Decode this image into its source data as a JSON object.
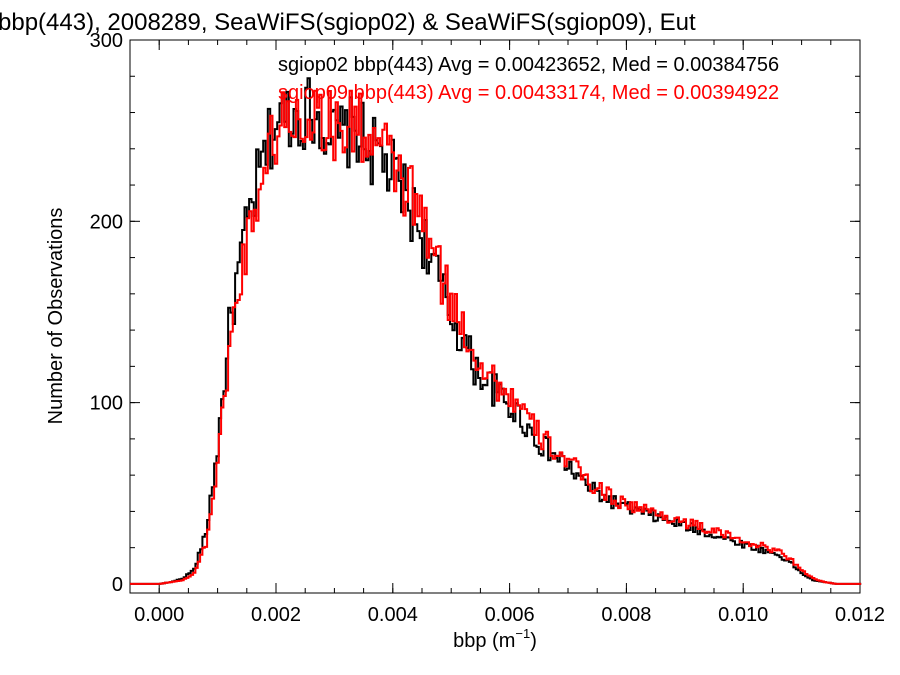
{
  "chart_data": {
    "type": "histogram",
    "title": "bbp(443), 2008289, SeaWiFS(sgiop02) & SeaWiFS(sgiop09), Eut",
    "xlabel": "bbp (m⁻¹)",
    "ylabel": "Number of Observations",
    "xlim": [
      -0.0005,
      0.012
    ],
    "ylim": [
      -5,
      300
    ],
    "xticks": [
      "0.000",
      "0.002",
      "0.004",
      "0.006",
      "0.008",
      "0.010",
      "0.012"
    ],
    "xtick_values": [
      0,
      0.002,
      0.004,
      0.006,
      0.008,
      0.01,
      0.012
    ],
    "yticks": [
      "0",
      "100",
      "200",
      "300"
    ],
    "ytick_values": [
      0,
      100,
      200,
      300
    ],
    "grid": false,
    "legend_placement": "top-right",
    "annotations": [
      {
        "text": "sgiop02 bbp(443) Avg = 0.00423652, Med = 0.00384756",
        "color": "#000000"
      },
      {
        "text": "sgiop09 bbp(443) Avg = 0.00433174, Med = 0.00394922",
        "color": "#ff0000"
      }
    ],
    "bin_width": 4e-05,
    "series": [
      {
        "name": "sgiop02",
        "color": "#000000",
        "x": [
          0.0,
          0.0002,
          0.0004,
          0.0006,
          0.0008,
          0.001,
          0.0012,
          0.0014,
          0.0016,
          0.0018,
          0.002,
          0.0022,
          0.0024,
          0.0026,
          0.0028,
          0.003,
          0.0032,
          0.0034,
          0.0036,
          0.0038,
          0.004,
          0.0042,
          0.0044,
          0.0046,
          0.0048,
          0.005,
          0.0052,
          0.0054,
          0.0056,
          0.0058,
          0.006,
          0.0062,
          0.0064,
          0.0066,
          0.0068,
          0.007,
          0.0072,
          0.0074,
          0.0076,
          0.0078,
          0.008,
          0.0082,
          0.0084,
          0.0086,
          0.0088,
          0.009,
          0.0092,
          0.0094,
          0.0096,
          0.0098,
          0.01,
          0.0102,
          0.0104,
          0.0106,
          0.0108,
          0.011,
          0.0112,
          0.0114,
          0.0116
        ],
        "values": [
          0,
          1,
          3,
          8,
          28,
          75,
          140,
          180,
          210,
          235,
          255,
          260,
          258,
          262,
          255,
          245,
          248,
          250,
          240,
          235,
          225,
          215,
          200,
          185,
          165,
          148,
          135,
          120,
          112,
          105,
          98,
          92,
          82,
          75,
          70,
          65,
          58,
          52,
          48,
          45,
          42,
          40,
          38,
          36,
          34,
          32,
          30,
          28,
          26,
          24,
          22,
          20,
          18,
          16,
          12,
          6,
          2,
          1,
          0
        ]
      },
      {
        "name": "sgiop09",
        "color": "#ff0000",
        "x": [
          0.0,
          0.0002,
          0.0004,
          0.0006,
          0.0008,
          0.001,
          0.0012,
          0.0014,
          0.0016,
          0.0018,
          0.002,
          0.0022,
          0.0024,
          0.0026,
          0.0028,
          0.003,
          0.0032,
          0.0034,
          0.0036,
          0.0038,
          0.004,
          0.0042,
          0.0044,
          0.0046,
          0.0048,
          0.005,
          0.0052,
          0.0054,
          0.0056,
          0.0058,
          0.006,
          0.0062,
          0.0064,
          0.0066,
          0.0068,
          0.007,
          0.0072,
          0.0074,
          0.0076,
          0.0078,
          0.008,
          0.0082,
          0.0084,
          0.0086,
          0.0088,
          0.009,
          0.0092,
          0.0094,
          0.0096,
          0.0098,
          0.01,
          0.0102,
          0.0104,
          0.0106,
          0.0108,
          0.011,
          0.0112,
          0.0114,
          0.0116
        ],
        "values": [
          0,
          1,
          2,
          6,
          22,
          65,
          130,
          170,
          205,
          230,
          250,
          258,
          256,
          260,
          258,
          250,
          252,
          255,
          245,
          240,
          230,
          220,
          208,
          192,
          172,
          155,
          142,
          128,
          118,
          110,
          104,
          97,
          86,
          79,
          73,
          68,
          61,
          55,
          51,
          47,
          44,
          42,
          40,
          38,
          36,
          34,
          32,
          30,
          28,
          26,
          24,
          22,
          20,
          18,
          14,
          8,
          3,
          1,
          0
        ]
      }
    ]
  }
}
